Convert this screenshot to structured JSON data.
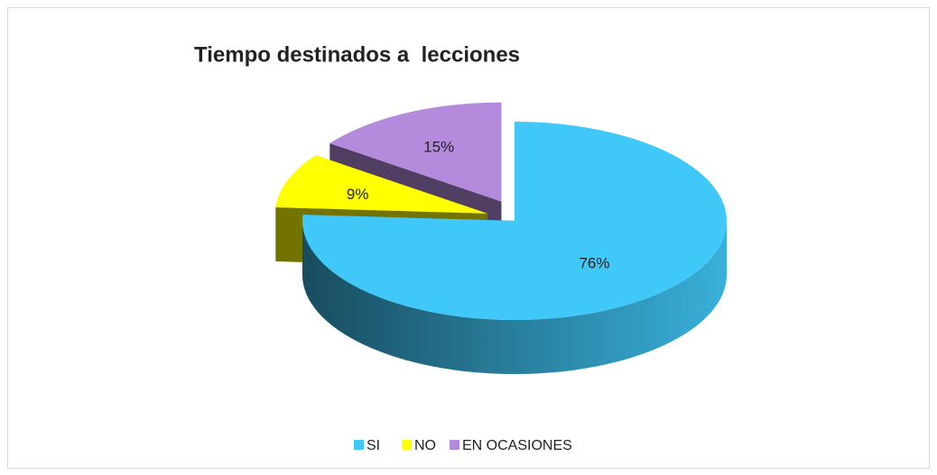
{
  "chart_data": {
    "type": "pie",
    "title": "Tiempo destinados a  lecciones",
    "categories": [
      "SI",
      "NO",
      "EN OCASIONES"
    ],
    "values": [
      76,
      9,
      15
    ],
    "value_labels": [
      "76%",
      "9%",
      "15%"
    ],
    "colors": [
      "#40c8f8",
      "#ffff00",
      "#b48adc"
    ],
    "legend": "bottom"
  }
}
